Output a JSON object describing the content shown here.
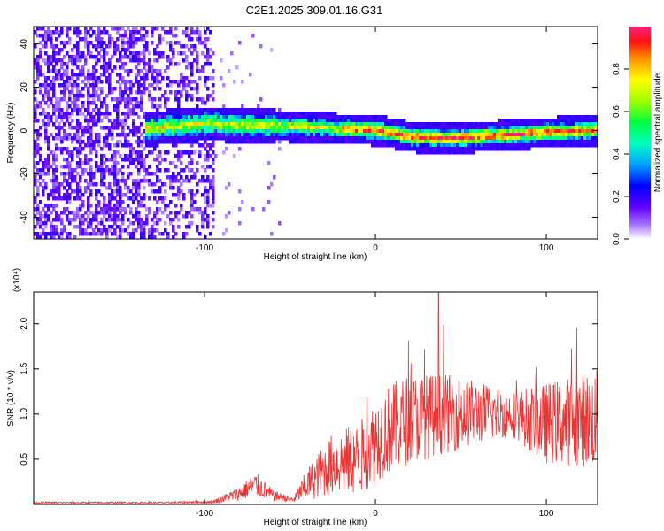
{
  "title": "C2E1.2025.309.01.16.G31",
  "chart_data": [
    {
      "type": "heatmap",
      "name": "spectrogram",
      "xlabel": "Height of straight line (km)",
      "ylabel": "Frequency (Hz)",
      "xlim": [
        -200,
        130
      ],
      "ylim": [
        -50,
        48
      ],
      "xticks": [
        -100,
        0,
        100
      ],
      "yticks": [
        -40,
        -20,
        0,
        20,
        40
      ],
      "colorbar": {
        "label": "Normalized spectral amplitude",
        "range": [
          0,
          1
        ],
        "ticks": [
          0.0,
          0.2,
          0.4,
          0.6,
          0.8
        ]
      },
      "ridge_frequency_hz": [
        {
          "x": -130,
          "y": 2
        },
        {
          "x": -100,
          "y": 4
        },
        {
          "x": -60,
          "y": 3
        },
        {
          "x": -30,
          "y": 2
        },
        {
          "x": 0,
          "y": 1
        },
        {
          "x": 20,
          "y": -2
        },
        {
          "x": 40,
          "y": -3
        },
        {
          "x": 60,
          "y": -2
        },
        {
          "x": 80,
          "y": -1
        },
        {
          "x": 100,
          "y": 0
        },
        {
          "x": 130,
          "y": 1
        }
      ]
    },
    {
      "type": "line",
      "name": "snr",
      "xlabel": "Height of straight line (km)",
      "ylabel": "SNR (10 * v/v)",
      "exponent_label": "(x10⁴)",
      "xlim": [
        -200,
        130
      ],
      "ylim": [
        0,
        2.35
      ],
      "xticks": [
        -100,
        0,
        100
      ],
      "yticks": [
        0.5,
        1.0,
        1.5,
        2.0
      ],
      "color": "#ee3333",
      "envelope": [
        {
          "x": -200,
          "mean": 0.02,
          "amp": 0.01
        },
        {
          "x": -120,
          "mean": 0.02,
          "amp": 0.01
        },
        {
          "x": -95,
          "mean": 0.03,
          "amp": 0.02
        },
        {
          "x": -80,
          "mean": 0.12,
          "amp": 0.08
        },
        {
          "x": -70,
          "mean": 0.22,
          "amp": 0.14
        },
        {
          "x": -60,
          "mean": 0.1,
          "amp": 0.06
        },
        {
          "x": -48,
          "mean": 0.05,
          "amp": 0.03
        },
        {
          "x": -40,
          "mean": 0.22,
          "amp": 0.18
        },
        {
          "x": -25,
          "mean": 0.45,
          "amp": 0.35
        },
        {
          "x": -10,
          "mean": 0.5,
          "amp": 0.4
        },
        {
          "x": 5,
          "mean": 0.8,
          "amp": 0.5
        },
        {
          "x": 20,
          "mean": 0.95,
          "amp": 0.5
        },
        {
          "x": 40,
          "mean": 1.0,
          "amp": 0.45
        },
        {
          "x": 60,
          "mean": 1.02,
          "amp": 0.35
        },
        {
          "x": 80,
          "mean": 1.0,
          "amp": 0.25
        },
        {
          "x": 100,
          "mean": 0.9,
          "amp": 0.45
        },
        {
          "x": 130,
          "mean": 0.95,
          "amp": 0.55
        }
      ]
    }
  ]
}
